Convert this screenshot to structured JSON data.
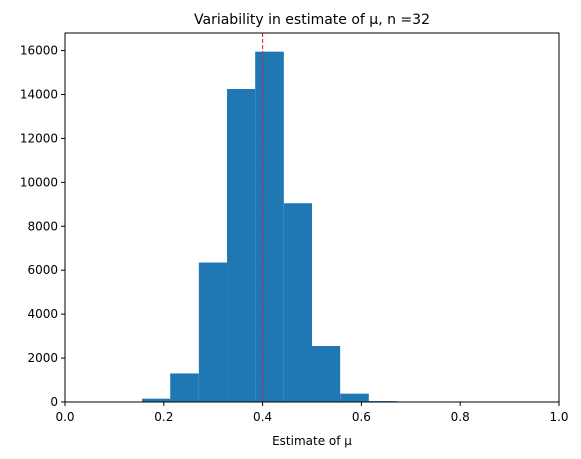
{
  "chart_data": {
    "type": "bar",
    "title": "Variability in estimate of μ, n =32",
    "xlabel": "Estimate of μ",
    "ylabel": "",
    "xlim": [
      0.0,
      1.0
    ],
    "ylim": [
      0,
      16800
    ],
    "x_ticks": [
      "0.0",
      "0.2",
      "0.4",
      "0.6",
      "0.8",
      "1.0"
    ],
    "x_tick_values": [
      0.0,
      0.2,
      0.4,
      0.6,
      0.8,
      1.0
    ],
    "y_ticks": [
      "0",
      "2000",
      "4000",
      "6000",
      "8000",
      "10000",
      "12000",
      "14000",
      "16000"
    ],
    "y_tick_values": [
      0,
      2000,
      4000,
      6000,
      8000,
      10000,
      12000,
      14000,
      16000
    ],
    "bins": [
      {
        "x0": 0.156,
        "x1": 0.213,
        "count": 150
      },
      {
        "x0": 0.213,
        "x1": 0.271,
        "count": 1300
      },
      {
        "x0": 0.271,
        "x1": 0.328,
        "count": 6350
      },
      {
        "x0": 0.328,
        "x1": 0.385,
        "count": 14250
      },
      {
        "x0": 0.385,
        "x1": 0.443,
        "count": 15950
      },
      {
        "x0": 0.443,
        "x1": 0.5,
        "count": 9050
      },
      {
        "x0": 0.5,
        "x1": 0.557,
        "count": 2550
      },
      {
        "x0": 0.557,
        "x1": 0.615,
        "count": 380
      },
      {
        "x0": 0.615,
        "x1": 0.672,
        "count": 40
      }
    ],
    "reference_line": {
      "x": 0.4,
      "color": "#d62728",
      "style": "dashed"
    },
    "bar_color": "#1f77b4",
    "grid": false,
    "legend": "none"
  }
}
